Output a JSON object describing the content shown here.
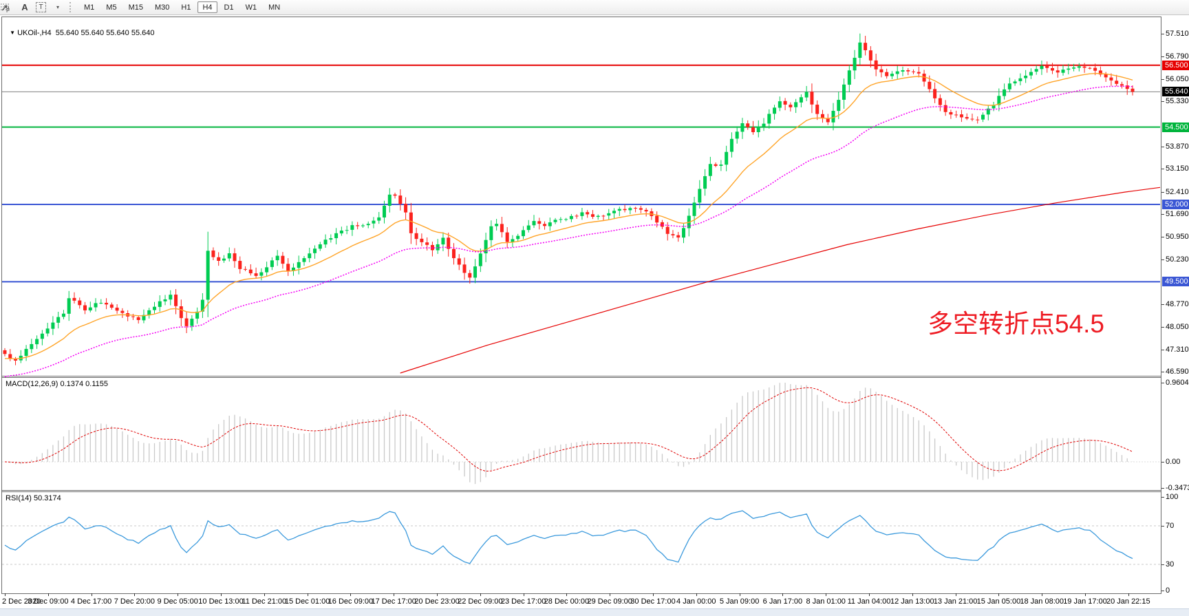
{
  "toolbar": {
    "tools": [
      {
        "name": "fibonacci-tool",
        "glyph": "F"
      },
      {
        "name": "text-tool",
        "glyph": "A"
      },
      {
        "name": "text-label-tool",
        "glyph": "T"
      },
      {
        "name": "arrows-tool",
        "glyph": "arrows"
      }
    ],
    "timeframes": [
      "M1",
      "M5",
      "M15",
      "M30",
      "H1",
      "H4",
      "D1",
      "W1",
      "MN"
    ],
    "active_timeframe": "H4"
  },
  "chart": {
    "collapse_icon": "▼",
    "title_symbol": "UKOil-,H4",
    "title_quotes": "55.640 55.640 55.640 55.640"
  },
  "annotation": {
    "text": "多空转折点54.5",
    "color": "#ee1c24"
  },
  "price_axis": {
    "ticks": [
      "57.510",
      "56.790",
      "56.050",
      "55.330",
      "53.870",
      "53.150",
      "52.410",
      "51.690",
      "50.950",
      "50.230",
      "48.770",
      "48.050",
      "47.310",
      "46.590"
    ],
    "badges": [
      {
        "text": "56.500",
        "price": 56.5,
        "bg": "#e60000"
      },
      {
        "text": "55.640",
        "price": 55.64,
        "bg": "#000000"
      },
      {
        "text": "54.500",
        "price": 54.5,
        "bg": "#00b43c"
      },
      {
        "text": "52.000",
        "price": 52.0,
        "bg": "#3a56d4"
      },
      {
        "text": "49.500",
        "price": 49.5,
        "bg": "#3a56d4"
      }
    ]
  },
  "levels": [
    {
      "price": 56.5,
      "color": "#e60000",
      "width": 2
    },
    {
      "price": 55.64,
      "color": "#808080",
      "width": 1
    },
    {
      "price": 54.5,
      "color": "#00b43c",
      "width": 2
    },
    {
      "price": 52.0,
      "color": "#3a56d4",
      "width": 2
    },
    {
      "price": 49.5,
      "color": "#3a56d4",
      "width": 2
    }
  ],
  "macd_panel": {
    "label": "MACD(12,26,9)",
    "values": "0.1374 0.1155",
    "axis": [
      {
        "text": "0.9604",
        "v": 0.9604
      },
      {
        "text": "0.00",
        "v": 0
      },
      {
        "text": "-0.3473",
        "v": -0.3473
      }
    ]
  },
  "rsi_panel": {
    "label": "RSI(14)",
    "value": "50.3174",
    "axis": [
      {
        "text": "100",
        "v": 100
      },
      {
        "text": "70",
        "v": 70
      },
      {
        "text": "30",
        "v": 30
      },
      {
        "text": "0",
        "v": 0
      }
    ],
    "guides": [
      70,
      30
    ]
  },
  "time_axis": {
    "labels": [
      "2 Dec 2020",
      "3 Dec 09:00",
      "4 Dec 17:00",
      "7 Dec 20:00",
      "9 Dec 05:00",
      "10 Dec 13:00",
      "11 Dec 21:00",
      "15 Dec 01:00",
      "16 Dec 09:00",
      "17 Dec 17:00",
      "20 Dec 23:00",
      "22 Dec 09:00",
      "23 Dec 17:00",
      "28 Dec 00:00",
      "29 Dec 09:00",
      "30 Dec 17:00",
      "4 Jan 00:00",
      "5 Jan 09:00",
      "6 Jan 17:00",
      "8 Jan 01:00",
      "11 Jan 04:00",
      "12 Jan 13:00",
      "13 Jan 21:00",
      "15 Jan 05:00",
      "18 Jan 08:00",
      "19 Jan 17:00",
      "20 Jan 22:15"
    ]
  },
  "chart_data": {
    "type": "candlestick",
    "symbol": "UKOil",
    "period": "H4",
    "bars": 212,
    "seed": 20210120,
    "last_close": 55.64,
    "price_axis_range": [
      46.46,
      58.05
    ],
    "close_anchors": [
      [
        0,
        47.15
      ],
      [
        2,
        46.95
      ],
      [
        5,
        47.5
      ],
      [
        7,
        47.85
      ],
      [
        11,
        48.5
      ],
      [
        12,
        49.0
      ],
      [
        13,
        48.85
      ],
      [
        15,
        48.6
      ],
      [
        18,
        48.85
      ],
      [
        20,
        48.7
      ],
      [
        22,
        48.45
      ],
      [
        25,
        48.3
      ],
      [
        29,
        48.85
      ],
      [
        31,
        49.05
      ],
      [
        33,
        48.35
      ],
      [
        34,
        48.1
      ],
      [
        36,
        48.55
      ],
      [
        37,
        48.9
      ],
      [
        38,
        50.5
      ],
      [
        40,
        50.15
      ],
      [
        42,
        50.4
      ],
      [
        44,
        49.95
      ],
      [
        47,
        49.7
      ],
      [
        49,
        50.0
      ],
      [
        51,
        50.3
      ],
      [
        53,
        49.85
      ],
      [
        56,
        50.3
      ],
      [
        58,
        50.55
      ],
      [
        60,
        50.85
      ],
      [
        62,
        51.05
      ],
      [
        65,
        51.3
      ],
      [
        67,
        51.35
      ],
      [
        70,
        51.55
      ],
      [
        72,
        52.3
      ],
      [
        73,
        52.25
      ],
      [
        75,
        51.7
      ],
      [
        76,
        51.05
      ],
      [
        78,
        50.8
      ],
      [
        80,
        50.55
      ],
      [
        82,
        50.9
      ],
      [
        84,
        50.3
      ],
      [
        86,
        49.75
      ],
      [
        87,
        49.62
      ],
      [
        88,
        50.0
      ],
      [
        89,
        50.45
      ],
      [
        91,
        51.3
      ],
      [
        92,
        51.4
      ],
      [
        94,
        50.75
      ],
      [
        96,
        51.0
      ],
      [
        99,
        51.5
      ],
      [
        101,
        51.3
      ],
      [
        103,
        51.5
      ],
      [
        106,
        51.6
      ],
      [
        108,
        51.72
      ],
      [
        111,
        51.6
      ],
      [
        114,
        51.8
      ],
      [
        118,
        51.9
      ],
      [
        121,
        51.65
      ],
      [
        124,
        51.05
      ],
      [
        126,
        50.95
      ],
      [
        128,
        51.6
      ],
      [
        130,
        52.5
      ],
      [
        132,
        53.3
      ],
      [
        134,
        53.25
      ],
      [
        136,
        54.1
      ],
      [
        138,
        54.6
      ],
      [
        140,
        54.35
      ],
      [
        142,
        54.65
      ],
      [
        145,
        55.35
      ],
      [
        147,
        55.15
      ],
      [
        150,
        55.6
      ],
      [
        152,
        54.9
      ],
      [
        154,
        54.65
      ],
      [
        156,
        55.4
      ],
      [
        158,
        56.3
      ],
      [
        160,
        57.2
      ],
      [
        161,
        57.0
      ],
      [
        163,
        56.35
      ],
      [
        165,
        56.1
      ],
      [
        168,
        56.35
      ],
      [
        171,
        56.25
      ],
      [
        173,
        55.7
      ],
      [
        176,
        55.0
      ],
      [
        179,
        54.8
      ],
      [
        182,
        54.78
      ],
      [
        185,
        55.25
      ],
      [
        188,
        55.9
      ],
      [
        191,
        56.2
      ],
      [
        194,
        56.45
      ],
      [
        197,
        56.3
      ],
      [
        200,
        56.45
      ],
      [
        203,
        56.4
      ],
      [
        205,
        56.2
      ],
      [
        208,
        55.9
      ],
      [
        211,
        55.64
      ]
    ],
    "long_ma_anchors": [
      [
        0.345,
        46.55
      ],
      [
        0.42,
        47.45
      ],
      [
        0.48,
        48.1
      ],
      [
        0.545,
        48.8
      ],
      [
        0.61,
        49.5
      ],
      [
        0.67,
        50.1
      ],
      [
        0.73,
        50.7
      ],
      [
        0.79,
        51.2
      ],
      [
        0.85,
        51.65
      ],
      [
        0.91,
        52.05
      ],
      [
        0.97,
        52.4
      ],
      [
        1.0,
        52.55
      ]
    ],
    "indicators": {
      "ma_fast": {
        "color": "#ffa428",
        "seed": 47.0,
        "k": 0.12
      },
      "ma_slow": {
        "color": "#f400f4",
        "seed": 46.4,
        "k": 0.045
      },
      "ma_long_color": "#e60000",
      "macd": {
        "fast": 12,
        "slow": 26,
        "signal": 9,
        "max_scale": 0.9604,
        "bar_color": "#c9c9c9",
        "signal_color": "#e00000"
      },
      "rsi": {
        "period": 14,
        "color": "#3a99dc"
      }
    },
    "colors": {
      "up": "#00cc52",
      "down": "#fb221d",
      "background": "#ffffff"
    }
  }
}
